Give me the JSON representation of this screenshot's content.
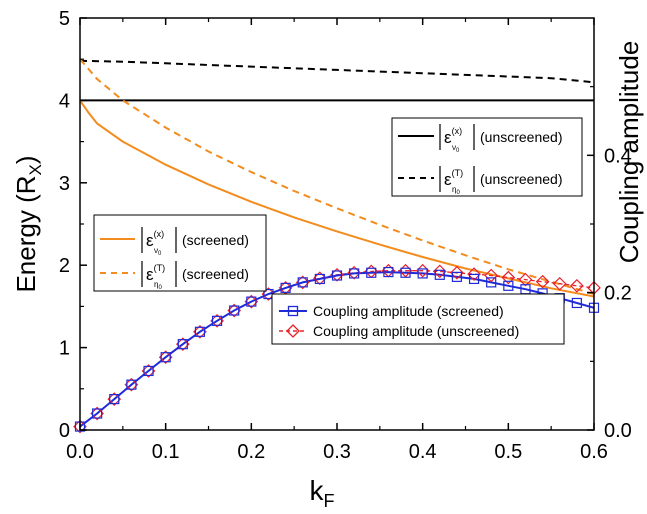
{
  "chart_data": {
    "type": "line",
    "xlabel_main": "k",
    "xlabel_sub": "F",
    "ylabel_main": "Energy (R",
    "ylabel_sub": "X",
    "ylabel_close": ")",
    "y2label": "Coupling amplitude",
    "xlim": [
      0.0,
      0.6
    ],
    "ylim": [
      0,
      5
    ],
    "y2lim": [
      0.0,
      0.6
    ],
    "x_ticks": [
      "0.0",
      "0.1",
      "0.2",
      "0.3",
      "0.4",
      "0.5",
      "0.6"
    ],
    "y_ticks": [
      "0",
      "1",
      "2",
      "3",
      "4",
      "5"
    ],
    "y2_ticks": [
      "0.0",
      "0.2",
      "0.4"
    ],
    "grid": false,
    "colors": {
      "orange": "#F28C1E",
      "black": "#000000",
      "blue": "#1F2AD8",
      "red": "#E8202A"
    },
    "legend_unscreened": [
      {
        "prefix": "ε",
        "sup": "(x)",
        "sub": "ν",
        "subsub": "0",
        "text": "(unscreened)"
      },
      {
        "prefix": "ε",
        "sup": "(T)",
        "sub": "η",
        "subsub": "0",
        "text": "(unscreened)"
      }
    ],
    "legend_screened": [
      {
        "prefix": "ε",
        "sup": "(x)",
        "sub": "ν",
        "subsub": "0",
        "text": "(screened)"
      },
      {
        "prefix": "ε",
        "sup": "(T)",
        "sub": "η",
        "subsub": "0",
        "text": "(screened)"
      }
    ],
    "legend_coupling": [
      "Coupling amplitude (screened)",
      "Coupling amplitude (unscreened)"
    ],
    "series": {
      "unscreened_x": {
        "axis": "left",
        "x": [
          0.0,
          0.6
        ],
        "y": [
          4.0,
          4.0
        ]
      },
      "unscreened_T": {
        "axis": "left",
        "x": [
          0.0,
          0.05,
          0.1,
          0.15,
          0.2,
          0.25,
          0.3,
          0.35,
          0.4,
          0.45,
          0.5,
          0.55,
          0.58,
          0.6
        ],
        "y": [
          4.48,
          4.47,
          4.45,
          4.43,
          4.41,
          4.39,
          4.37,
          4.35,
          4.33,
          4.31,
          4.29,
          4.27,
          4.24,
          4.22
        ]
      },
      "screened_x": {
        "axis": "left",
        "x": [
          0.0,
          0.01,
          0.02,
          0.05,
          0.1,
          0.15,
          0.2,
          0.25,
          0.3,
          0.35,
          0.4,
          0.45,
          0.5,
          0.55,
          0.6
        ],
        "y": [
          4.0,
          3.85,
          3.72,
          3.5,
          3.22,
          2.98,
          2.77,
          2.58,
          2.41,
          2.25,
          2.1,
          1.96,
          1.84,
          1.72,
          1.62
        ]
      },
      "screened_T": {
        "axis": "left",
        "x": [
          0.0,
          0.01,
          0.02,
          0.05,
          0.1,
          0.15,
          0.2,
          0.25,
          0.3,
          0.35,
          0.4,
          0.45,
          0.5,
          0.55,
          0.6
        ],
        "y": [
          4.5,
          4.38,
          4.26,
          4.0,
          3.67,
          3.38,
          3.13,
          2.9,
          2.69,
          2.49,
          2.3,
          2.12,
          1.95,
          1.8,
          1.65
        ]
      },
      "coupling_screened": {
        "axis": "right",
        "x": [
          0.0,
          0.02,
          0.04,
          0.06,
          0.08,
          0.1,
          0.12,
          0.14,
          0.16,
          0.18,
          0.2,
          0.22,
          0.24,
          0.26,
          0.28,
          0.3,
          0.32,
          0.34,
          0.36,
          0.38,
          0.4,
          0.42,
          0.44,
          0.46,
          0.48,
          0.5,
          0.52,
          0.54,
          0.56,
          0.58,
          0.6
        ],
        "y": [
          0.005,
          0.024,
          0.045,
          0.066,
          0.086,
          0.106,
          0.125,
          0.143,
          0.159,
          0.174,
          0.187,
          0.198,
          0.207,
          0.215,
          0.22,
          0.225,
          0.228,
          0.229,
          0.23,
          0.229,
          0.228,
          0.226,
          0.223,
          0.22,
          0.215,
          0.21,
          0.205,
          0.199,
          0.192,
          0.185,
          0.178
        ]
      },
      "coupling_unscreened": {
        "axis": "right",
        "x": [
          0.0,
          0.02,
          0.04,
          0.06,
          0.08,
          0.1,
          0.12,
          0.14,
          0.16,
          0.18,
          0.2,
          0.22,
          0.24,
          0.26,
          0.28,
          0.3,
          0.32,
          0.34,
          0.36,
          0.38,
          0.4,
          0.42,
          0.44,
          0.46,
          0.48,
          0.5,
          0.52,
          0.54,
          0.56,
          0.58,
          0.6
        ],
        "y": [
          0.005,
          0.024,
          0.045,
          0.066,
          0.086,
          0.106,
          0.125,
          0.143,
          0.159,
          0.174,
          0.187,
          0.198,
          0.207,
          0.215,
          0.221,
          0.226,
          0.229,
          0.231,
          0.232,
          0.232,
          0.232,
          0.231,
          0.229,
          0.227,
          0.225,
          0.222,
          0.219,
          0.216,
          0.213,
          0.21,
          0.207
        ]
      }
    }
  }
}
